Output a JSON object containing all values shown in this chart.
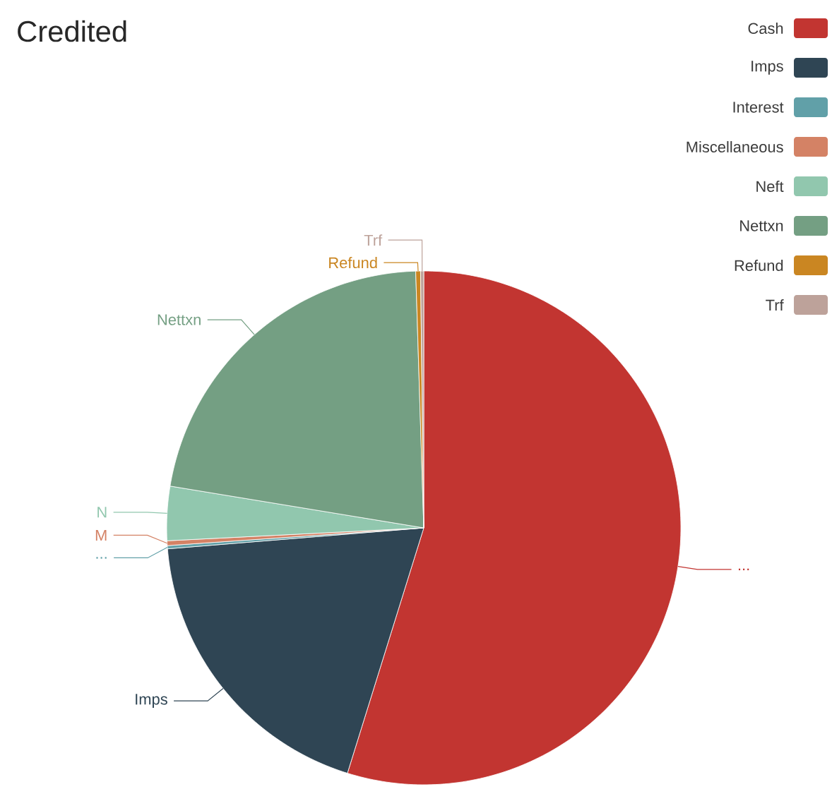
{
  "chart_data": {
    "type": "pie",
    "title": "Credited",
    "categories": [
      "Cash",
      "Imps",
      "Interest",
      "Miscellaneous",
      "Neft",
      "Nettxn",
      "Refund",
      "Trf"
    ],
    "values": [
      54.8,
      18.9,
      0.2,
      0.3,
      3.4,
      21.9,
      0.3,
      0.2
    ],
    "colors": [
      "#c23531",
      "#2f4554",
      "#61a0a8",
      "#d48265",
      "#91c7ae",
      "#749f83",
      "#ca8622",
      "#bda29a"
    ],
    "legend": "top right",
    "annotations": [
      "...",
      "Imps",
      "...",
      "M",
      "N",
      "Nettxn",
      "Refund",
      "Trf"
    ]
  }
}
